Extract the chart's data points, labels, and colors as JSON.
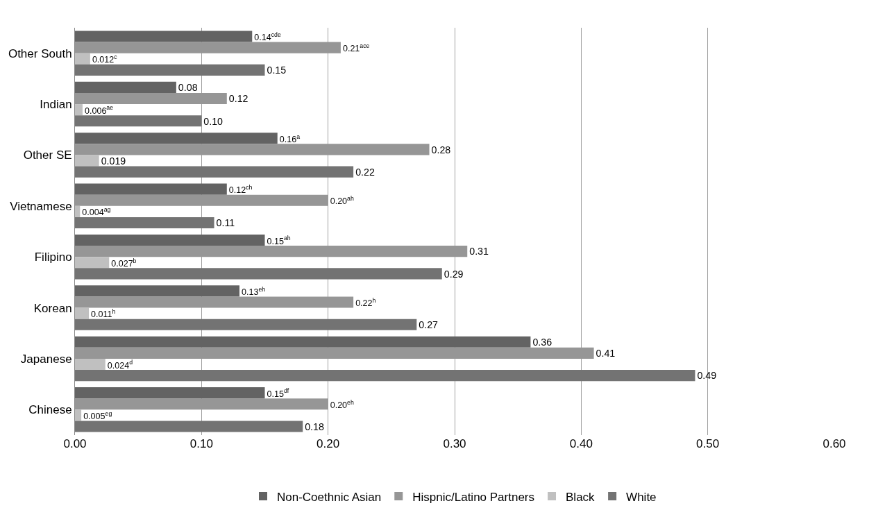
{
  "chart_data": {
    "type": "bar",
    "orientation": "horizontal",
    "categories": [
      "Other South",
      "Indian",
      "Other SE",
      "Vietnamese",
      "Filipino",
      "Korean",
      "Japanese",
      "Chinese"
    ],
    "series": [
      {
        "name": "Non-Coethnic Asian",
        "color": "#636363",
        "values": [
          0.14,
          0.08,
          0.16,
          0.12,
          0.15,
          0.13,
          0.36,
          0.15
        ],
        "value_labels": [
          "0.14$^{cde}$",
          "0.08",
          "0.16$^{a}$",
          "0.12$^{ch}$",
          "0.15$^{ah}$",
          "0.13$^{eh}$",
          "0.36",
          "0.15$^{df}$"
        ]
      },
      {
        "name": "Hispnic/Latino Partners",
        "color": "#969696",
        "values": [
          0.21,
          0.12,
          0.28,
          0.2,
          0.31,
          0.22,
          0.41,
          0.2
        ],
        "value_labels": [
          "0.21$^{ace}$",
          "0.12",
          "0.28",
          "0.20$^{ah}$",
          "0.31",
          "0.22$^{h}$",
          "0.41",
          "0.20$^{eh}$"
        ]
      },
      {
        "name": "Black",
        "color": "#c0c0c0",
        "values": [
          0.012,
          0.006,
          0.019,
          0.004,
          0.027,
          0.011,
          0.024,
          0.005
        ],
        "value_labels": [
          "0.012$^{c}$",
          "0.006$^{ae}$",
          "0.019",
          "0.004$^{ag}$",
          "0.027$^{b}$",
          "0.011$^{h}$",
          "0.024$^{d}$",
          "0.005$^{eg}$"
        ]
      },
      {
        "name": "White",
        "color": "#737373",
        "values": [
          0.15,
          0.1,
          0.22,
          0.11,
          0.29,
          0.27,
          0.49,
          0.18
        ],
        "value_labels": [
          "0.15",
          "0.10",
          "0.22",
          "0.11",
          "0.29",
          "0.27",
          "0.49",
          "0.18"
        ]
      }
    ],
    "xlim": [
      0,
      0.6
    ],
    "xticks": [
      {
        "value": 0,
        "label": "0.00"
      },
      {
        "value": 0.1,
        "label": "0.10"
      },
      {
        "value": 0.2,
        "label": "0.20"
      },
      {
        "value": 0.3,
        "label": "0.30"
      },
      {
        "value": 0.4,
        "label": "0.40"
      },
      {
        "value": 0.5,
        "label": "0.50"
      },
      {
        "value": 0.6,
        "label": "0.60"
      }
    ],
    "grid": "x",
    "legend": "bottom"
  }
}
